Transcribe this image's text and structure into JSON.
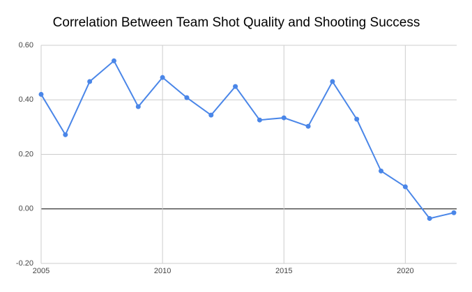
{
  "chart_data": {
    "type": "line",
    "title": "Correlation Between Team Shot Quality and Shooting Success",
    "x": [
      2005,
      2006,
      2007,
      2008,
      2009,
      2010,
      2011,
      2012,
      2013,
      2014,
      2015,
      2016,
      2017,
      2018,
      2019,
      2020,
      2021,
      2022
    ],
    "series": [
      {
        "color": "#4a86e8",
        "values": [
          0.42,
          0.272,
          0.467,
          0.543,
          0.375,
          0.482,
          0.408,
          0.344,
          0.449,
          0.326,
          0.334,
          0.303,
          0.467,
          0.329,
          0.139,
          0.081,
          -0.035,
          -0.014
        ]
      }
    ],
    "xlim": [
      2005,
      2022
    ],
    "xticks": [
      2005,
      2010,
      2015,
      2020
    ],
    "ylim": [
      -0.2,
      0.6
    ],
    "yticks": [
      {
        "value": -0.2,
        "label": "-0.20"
      },
      {
        "value": 0,
        "label": "0.00"
      },
      {
        "value": 0.2,
        "label": "0.20"
      },
      {
        "value": 0.4,
        "label": "0.40"
      },
      {
        "value": 0.6,
        "label": "0.60"
      }
    ],
    "grid": true
  }
}
